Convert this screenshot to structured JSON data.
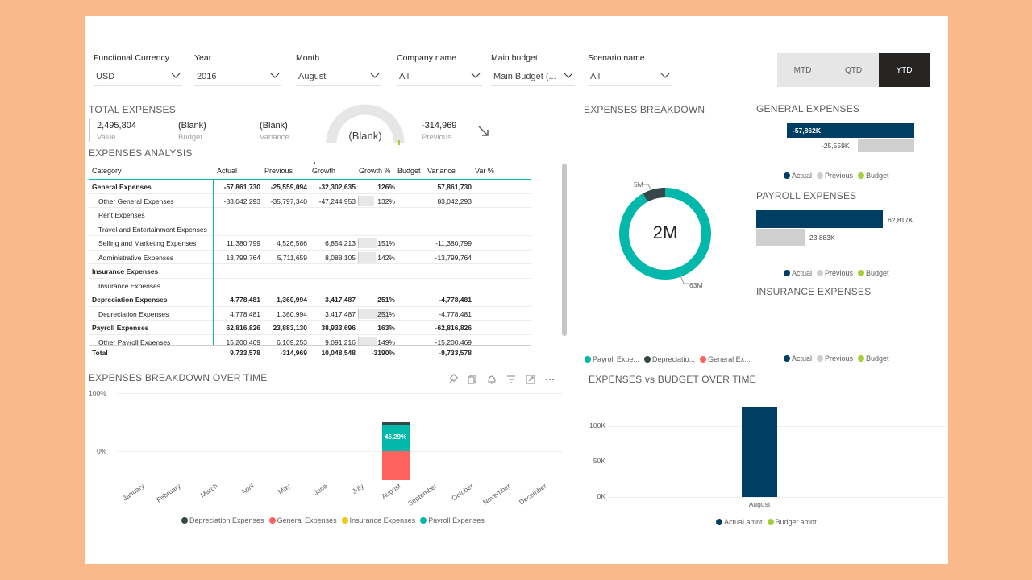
{
  "filters": [
    {
      "label": "Functional Currency",
      "value": "USD"
    },
    {
      "label": "Year",
      "value": "2016"
    },
    {
      "label": "Month",
      "value": "August"
    },
    {
      "label": "Company name",
      "value": "All"
    },
    {
      "label": "Main budget",
      "value": "Main Budget (..."
    },
    {
      "label": "Scenario name",
      "value": "All"
    }
  ],
  "period_toggle": {
    "mtd": "MTD",
    "qtd": "QTD",
    "ytd": "YTD",
    "active": "YTD"
  },
  "total_expenses": {
    "title": "TOTAL EXPENSES",
    "value": "2,495,804",
    "value_label": "Value",
    "budget": "(Blank)",
    "budget_label": "Budget",
    "variance": "(Blank)",
    "variance_label": "Variance",
    "gauge": "(Blank)",
    "previous": "-314,969",
    "previous_label": "Previous",
    "trend_icon": "arrow-down-right-icon"
  },
  "expenses_analysis": {
    "title": "EXPENSES ANALYSIS",
    "columns": [
      "Category",
      "Actual",
      "Previous",
      "Growth",
      "Growth %",
      "Budget",
      "Variance",
      "Var %"
    ],
    "rows": [
      {
        "category": "General Expenses",
        "bold": true,
        "actual": "-57,861,730",
        "previous": "-25,559,094",
        "growth": "-32,302,635",
        "growth_pct": "126%",
        "growth_fill": 0,
        "variance": "57,861,730"
      },
      {
        "category": "Other General Expenses",
        "bold": false,
        "actual": "-83,042,293",
        "previous": "-35,797,340",
        "growth": "-47,244,953",
        "growth_pct": "132%",
        "growth_fill": 0.52,
        "variance": "83,042,293"
      },
      {
        "category": "Rent Expenses",
        "bold": false,
        "actual": "",
        "previous": "",
        "growth": "",
        "growth_pct": "",
        "growth_fill": 0,
        "variance": ""
      },
      {
        "category": "Travel and Entertainment Expenses",
        "bold": false,
        "actual": "",
        "previous": "",
        "growth": "",
        "growth_pct": "",
        "growth_fill": 0,
        "variance": ""
      },
      {
        "category": "Selling and Marketing Expenses",
        "bold": false,
        "actual": "11,380,799",
        "previous": "4,526,586",
        "growth": "6,854,213",
        "growth_pct": "151%",
        "growth_fill": 0.6,
        "variance": "-11,380,799"
      },
      {
        "category": "Administrative Expenses",
        "bold": false,
        "actual": "13,799,764",
        "previous": "5,711,659",
        "growth": "8,088,105",
        "growth_pct": "142%",
        "growth_fill": 0.56,
        "variance": "-13,799,764"
      },
      {
        "category": "Insurance Expenses",
        "bold": true,
        "actual": "",
        "previous": "",
        "growth": "",
        "growth_pct": "",
        "growth_fill": 0,
        "variance": ""
      },
      {
        "category": "Insurance Expenses",
        "bold": false,
        "actual": "",
        "previous": "",
        "growth": "",
        "growth_pct": "",
        "growth_fill": 0,
        "variance": ""
      },
      {
        "category": "Depreciation Expenses",
        "bold": true,
        "actual": "4,778,481",
        "previous": "1,360,994",
        "growth": "3,417,487",
        "growth_pct": "251%",
        "growth_fill": 0,
        "variance": "-4,778,481"
      },
      {
        "category": "Depreciation Expenses",
        "bold": false,
        "actual": "4,778,481",
        "previous": "1,360,994",
        "growth": "3,417,487",
        "growth_pct": "251%",
        "growth_fill": 1.0,
        "variance": "-4,778,481"
      },
      {
        "category": "Payroll Expenses",
        "bold": true,
        "actual": "62,816,826",
        "previous": "23,883,130",
        "growth": "38,933,696",
        "growth_pct": "163%",
        "growth_fill": 0,
        "variance": "-62,816,826"
      },
      {
        "category": "Other Payroll Expenses",
        "bold": false,
        "actual": "15,200,469",
        "previous": "6,109,253",
        "growth": "9,091,216",
        "growth_pct": "149%",
        "growth_fill": 0.59,
        "variance": "-15,200,469"
      }
    ],
    "total": {
      "category": "Total",
      "actual": "9,733,578",
      "previous": "-314,969",
      "growth": "10,048,548",
      "growth_pct": "-3190%",
      "variance": "-9,733,578"
    }
  },
  "expenses_breakdown": {
    "title": "EXPENSES BREAKDOWN",
    "center_label": "2M",
    "label_small": "5M",
    "label_large": "63M",
    "legend": [
      "Payroll Expe...",
      "Depreciatio...",
      "General Ex..."
    ],
    "colors": {
      "payroll": "#01b8aa",
      "depreciation": "#374649",
      "general": "#fd625e",
      "insurance": "#f2c80f"
    }
  },
  "general_expenses": {
    "title": "GENERAL EXPENSES",
    "actual_label": "-57,862K",
    "previous_label": "-25,559K",
    "actual_value": -57862,
    "previous_value": -25559
  },
  "payroll_expenses": {
    "title": "PAYROLL EXPENSES",
    "actual_label": "62,817K",
    "previous_label": "23,883K",
    "actual_value": 62817,
    "previous_value": 23883
  },
  "insurance_expenses": {
    "title": "INSURANCE EXPENSES"
  },
  "apb_legend": {
    "actual": "Actual",
    "previous": "Previous",
    "budget": "Budget"
  },
  "bar_colors": {
    "actual": "#003f63",
    "previous": "#cfcfcf",
    "budget": "#a5cf3a"
  },
  "breakdown_over_time": {
    "title": "EXPENSES BREAKDOWN OVER TIME",
    "icons": [
      "pin-icon",
      "copy-icon",
      "bell-icon",
      "filter-icon",
      "expand-icon",
      "more-icon"
    ],
    "y_ticks": [
      "100%",
      "0%"
    ],
    "bar_label": "46.29%",
    "legend": [
      "Depreciation Expenses",
      "General Expenses",
      "Insurance Expenses",
      "Payroll Expenses"
    ]
  },
  "chart_data": [
    {
      "type": "bar",
      "title": "EXPENSES BREAKDOWN OVER TIME",
      "categories": [
        "January",
        "February",
        "March",
        "April",
        "May",
        "June",
        "July",
        "August",
        "September",
        "October",
        "November",
        "December"
      ],
      "series": [
        {
          "name": "Payroll Expenses",
          "values": [
            null,
            null,
            null,
            null,
            null,
            null,
            null,
            46.29,
            null,
            null,
            null,
            null
          ]
        },
        {
          "name": "Depreciation Expenses",
          "values": [
            null,
            null,
            null,
            null,
            null,
            null,
            null,
            3.5,
            null,
            null,
            null,
            null
          ]
        },
        {
          "name": "General Expenses",
          "values": [
            null,
            null,
            null,
            null,
            null,
            null,
            null,
            -50.2,
            null,
            null,
            null,
            null
          ]
        }
      ]
    },
    {
      "type": "bar",
      "title": "EXPENSES vs BUDGET OVER TIME",
      "categories": [
        "August"
      ],
      "y_ticks": [
        "100K",
        "50K",
        "0K"
      ],
      "ylim": [
        0,
        130000
      ],
      "series": [
        {
          "name": "Actual amnt",
          "values": [
            128000
          ]
        },
        {
          "name": "Budget amnt",
          "values": [
            0
          ]
        }
      ]
    }
  ],
  "budget_over_time": {
    "title": "EXPENSES vs BUDGET OVER TIME",
    "legend": [
      "Actual amnt",
      "Budget amnt"
    ]
  }
}
